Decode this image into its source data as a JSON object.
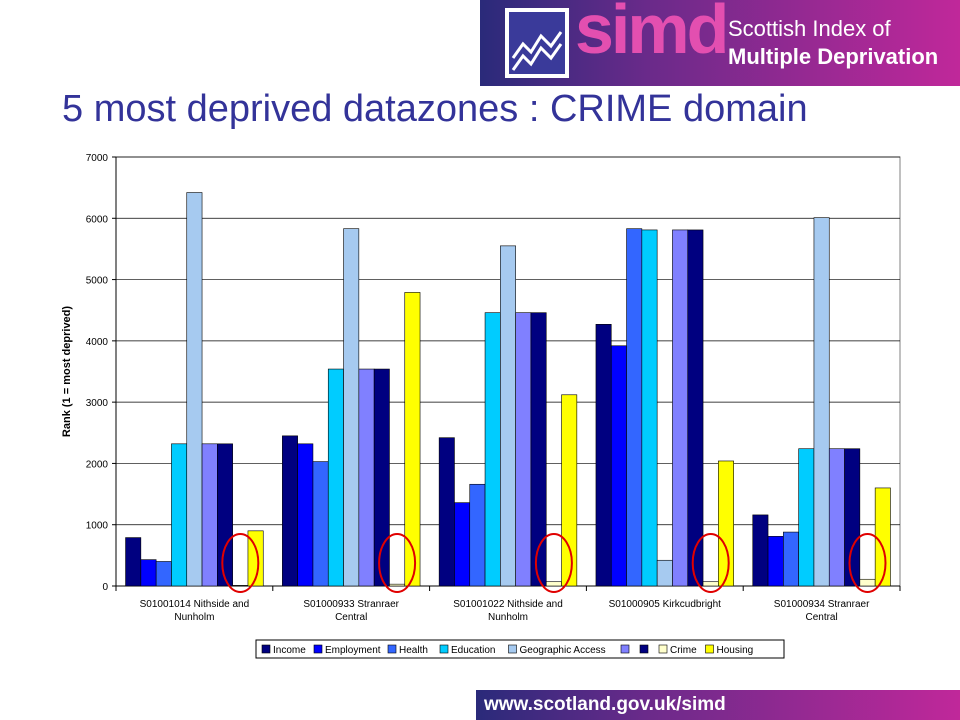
{
  "header": {
    "logo_word": "simd",
    "logo_line1": "Scottish Index of",
    "logo_line2": "Multiple Deprivation"
  },
  "slide": {
    "title": "5 most deprived datazones : CRIME domain"
  },
  "footer": {
    "url": "www.scotland.gov.uk/simd"
  },
  "colors": {
    "banner_start": "#2a2a7a",
    "banner_end": "#c0289a",
    "title": "#333399",
    "highlight_circle": "#e00000"
  },
  "chart_data": {
    "type": "bar",
    "title": "",
    "xlabel": "",
    "ylabel": "Rank (1 = most deprived)",
    "ylim": [
      0,
      7000
    ],
    "yticks": [
      0,
      1000,
      2000,
      3000,
      4000,
      5000,
      6000,
      7000
    ],
    "grid": true,
    "legend_position": "bottom",
    "categories": [
      [
        "S01001014 Nithside and",
        "Nunholm"
      ],
      [
        "S01000933 Stranraer",
        "Central"
      ],
      [
        "S01001022 Nithside and",
        "Nunholm"
      ],
      [
        "S01000905 Kirkcudbright"
      ],
      [
        "S01000934 Stranraer",
        "Central"
      ]
    ],
    "series": [
      {
        "name": "Income",
        "color": "#000080",
        "values": [
          790,
          2450,
          2420,
          4270,
          1160
        ]
      },
      {
        "name": "Employment",
        "color": "#0000ff",
        "values": [
          430,
          2320,
          1360,
          3920,
          810
        ]
      },
      {
        "name": "Health",
        "color": "#3366ff",
        "values": [
          400,
          2030,
          1660,
          5830,
          880
        ]
      },
      {
        "name": "Education",
        "color": "#00ccff",
        "values": [
          2320,
          3540,
          4460,
          5810,
          2240
        ]
      },
      {
        "name": "Geographic Access",
        "color": "#a6caf0",
        "values": [
          6420,
          5830,
          5550,
          420,
          6010
        ]
      },
      {
        "name": "",
        "color": "#8080ff",
        "values": [
          2320,
          3540,
          4460,
          5810,
          2240
        ]
      },
      {
        "name": "",
        "color": "#000080",
        "values": [
          2320,
          3540,
          4460,
          5810,
          2240
        ]
      },
      {
        "name": "Crime",
        "color": "#ffffcc",
        "values": [
          10,
          30,
          70,
          70,
          110
        ]
      },
      {
        "name": "Housing",
        "color": "#ffff00",
        "values": [
          900,
          4790,
          3120,
          2040,
          1600
        ]
      }
    ]
  }
}
